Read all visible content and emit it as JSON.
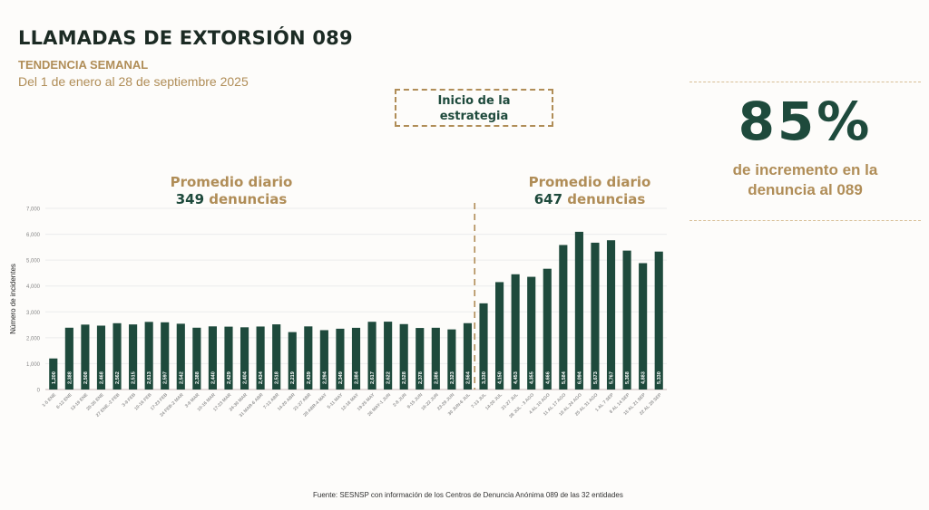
{
  "header": {
    "title": "LLAMADAS DE EXTORSIÓN 089",
    "subtitle": "TENDENCIA SEMANAL",
    "date_range": "Del 1 de enero al 28 de septiembre 2025"
  },
  "annotation": {
    "strategy_line1": "Inicio de la",
    "strategy_line2": "estrategia"
  },
  "averages": {
    "before": {
      "label": "Promedio diario",
      "number": "349",
      "unit": "denuncias"
    },
    "after": {
      "label": "Promedio diario",
      "number": "647",
      "unit": "denuncias"
    }
  },
  "stat": {
    "value": "85%",
    "line1": "de incremento en la",
    "line2": "denuncia al 089"
  },
  "source": "Fuente: SESNSP con información de los Centros de Denuncia Anónima 089 de las 32 entidades",
  "colors": {
    "bar": "#1e4a3c",
    "accent": "#b08d57",
    "dark": "#1c2b24"
  },
  "chart_data": {
    "type": "bar",
    "title": "LLAMADAS DE EXTORSIÓN 089",
    "xlabel": "",
    "ylabel": "Número de incidentes",
    "ylim": [
      0,
      7000
    ],
    "yticks": [
      "0",
      "1,000",
      "2,000",
      "3,000",
      "4,000",
      "5,000",
      "6,000",
      "7,000"
    ],
    "grid": true,
    "strategy_start_index": 27,
    "categories": [
      "1-5 ENE",
      "6-12 ENE",
      "13-19 ENE",
      "20-26 ENE",
      "27 ENE.-2 FEB",
      "3-9 FEB",
      "10-16 FEB",
      "17-23 FEB",
      "24 FEB-2 MAR",
      "3-9 MAR",
      "10-16 MAR",
      "17-23 MAR",
      "24-30 MAR",
      "31 MAR-6 ABR",
      "7-13 ABR",
      "14-20 ABR",
      "21-27 ABR",
      "28 ABR-4 MAY",
      "5-11 MAY",
      "12-18 MAY",
      "19-25 MAY",
      "26 MAY-1 JUN",
      "2-8 JUN",
      "9-15 JUN",
      "16-22 JUN",
      "23-29 JUN",
      "30 JUN-6 JUL",
      "7-13 JUL",
      "14-20 JUL",
      "21-27 JUL",
      "28 JUL - 3 AGO",
      "4 AL 10 AGO",
      "11 AL 17 AGO",
      "18 AL 24 AGO",
      "25 AL 31 AGO",
      "1 AL 7 SEP",
      "8 AL 14 SEP",
      "15 AL 21 SEP",
      "22 AL 28 SEP"
    ],
    "values": [
      1200,
      2388,
      2508,
      2468,
      2562,
      2515,
      2613,
      2597,
      2542,
      2388,
      2440,
      2429,
      2404,
      2434,
      2518,
      2219,
      2439,
      2294,
      2349,
      2384,
      2617,
      2622,
      2528,
      2378,
      2386,
      2323,
      2564,
      3330,
      4150,
      4453,
      4355,
      4666,
      5584,
      6094,
      5673,
      5767,
      5368,
      4883,
      5330
    ],
    "value_labels": [
      "1,200",
      "2,388",
      "2,508",
      "2,468",
      "2,562",
      "2,515",
      "2,613",
      "2,597",
      "2,542",
      "2,388",
      "2,440",
      "2,429",
      "2,404",
      "2,434",
      "2,518",
      "2,219",
      "2,439",
      "2,294",
      "2,349",
      "2,384",
      "2,617",
      "2,622",
      "2,528",
      "2,378",
      "2,386",
      "2,323",
      "2,564",
      "3,330",
      "4,150",
      "4,453",
      "4,355",
      "4,666",
      "5,584",
      "6,094",
      "5,673",
      "5,767",
      "5,368",
      "4,883",
      "5,330"
    ]
  }
}
